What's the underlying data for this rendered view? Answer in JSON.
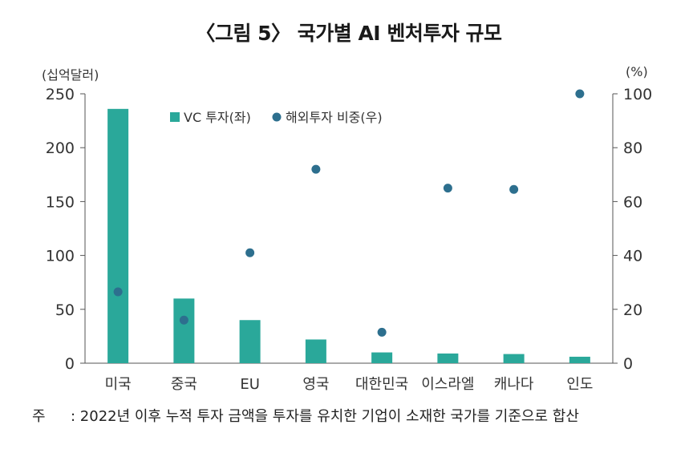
{
  "chart_data": {
    "type": "bar+scatter",
    "title": "〈그림 5〉 국가별 AI 벤처투자 규모",
    "categories": [
      "미국",
      "중국",
      "EU",
      "영국",
      "대한민국",
      "이스라엘",
      "캐나다",
      "인도"
    ],
    "series": [
      {
        "name": "VC 투자(좌)",
        "type": "bar",
        "axis": "left",
        "color": "#2aa89a",
        "values": [
          236,
          60,
          40,
          22,
          10,
          9,
          8.5,
          6
        ]
      },
      {
        "name": "해외투자 비중(우)",
        "type": "scatter",
        "axis": "right",
        "color": "#2d6f8e",
        "values": [
          26.5,
          16,
          41,
          72,
          11.5,
          65,
          64.5,
          100
        ]
      }
    ],
    "left_axis": {
      "unit": "(십억달러)",
      "ylim": [
        0,
        250
      ],
      "ticks": [
        0,
        50,
        100,
        150,
        200,
        250
      ]
    },
    "right_axis": {
      "unit": "(%)",
      "ylim": [
        0,
        100
      ],
      "ticks": [
        0,
        20,
        40,
        60,
        80,
        100
      ]
    },
    "legend_position": "top"
  },
  "note": {
    "label": "주",
    "text": ": 2022년 이후 누적 투자 금액을 투자를 유치한 기업이 소재한 국가를 기준으로 합산"
  }
}
